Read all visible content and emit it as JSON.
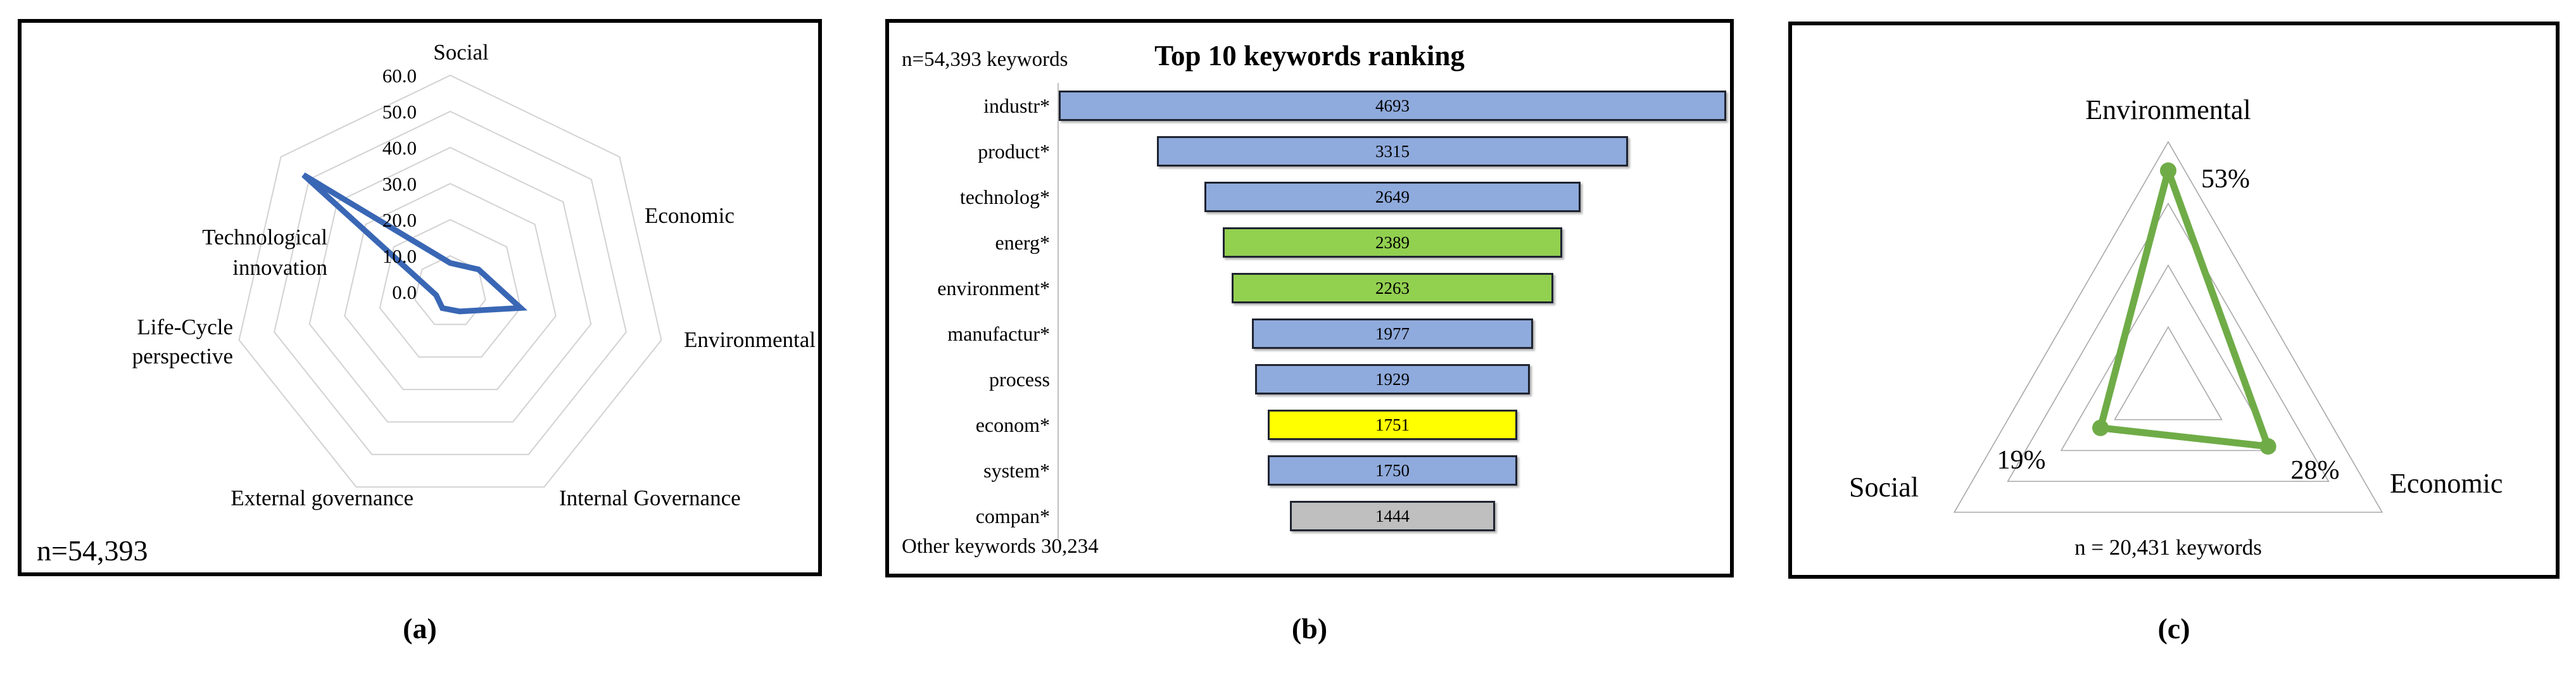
{
  "figure": {
    "captions": [
      "(a)",
      "(b)",
      "(c)"
    ],
    "background": "#FFFFFF",
    "grid_color": "#D2D2D2"
  },
  "chart_data": [
    {
      "id": "radar-dimensions",
      "type": "radar",
      "categories": [
        "Social",
        "Economic",
        "Environmental",
        "Internal Governance",
        "External governance",
        "Life-Cycle perspective",
        "Technological innovation"
      ],
      "values": [
        8,
        10,
        20,
        6,
        5,
        4,
        52
      ],
      "rmax": 60,
      "rings": [
        10,
        20,
        30,
        40,
        50,
        60
      ],
      "tick_labels": [
        "0.0",
        "10.0",
        "20.0",
        "30.0",
        "40.0",
        "50.0",
        "60.0"
      ],
      "line_color": "#3A67B5",
      "annotation": "n=54,393",
      "legend": "none",
      "grid": "on"
    },
    {
      "id": "bars-top10-keywords",
      "type": "bar",
      "layout": "centered-funnel-horizontal",
      "title": "Top 10 keywords ranking",
      "annotation_top": "n=54,393 keywords",
      "annotation_bottom": "Other keywords 30,234",
      "categories": [
        "industr*",
        "product*",
        "technolog*",
        "energ*",
        "environment*",
        "manufactur*",
        "process",
        "econom*",
        "system*",
        "compan*"
      ],
      "values": [
        4693,
        3315,
        2649,
        2389,
        2263,
        1977,
        1929,
        1751,
        1750,
        1444
      ],
      "bar_colors": [
        "#8FAADC",
        "#8FAADC",
        "#8FAADC",
        "#92D050",
        "#92D050",
        "#8FAADC",
        "#8FAADC",
        "#FFFF00",
        "#8FAADC",
        "#BFBFBF"
      ],
      "bar_border_color": "#1F2430",
      "axis_line_color": "#BFBFBF",
      "xlim": [
        0,
        4693
      ],
      "grid": "off"
    },
    {
      "id": "radar-tbl-shares",
      "type": "radar",
      "categories": [
        "Environmental",
        "Economic",
        "Social"
      ],
      "values": [
        53,
        28,
        19
      ],
      "value_labels": [
        "53%",
        "28%",
        "19%"
      ],
      "rmax": 60,
      "rings": [
        15,
        30,
        45,
        60
      ],
      "line_color": "#6FAC47",
      "annotation": "n = 20,431 keywords",
      "legend": "none",
      "grid": "on"
    }
  ]
}
